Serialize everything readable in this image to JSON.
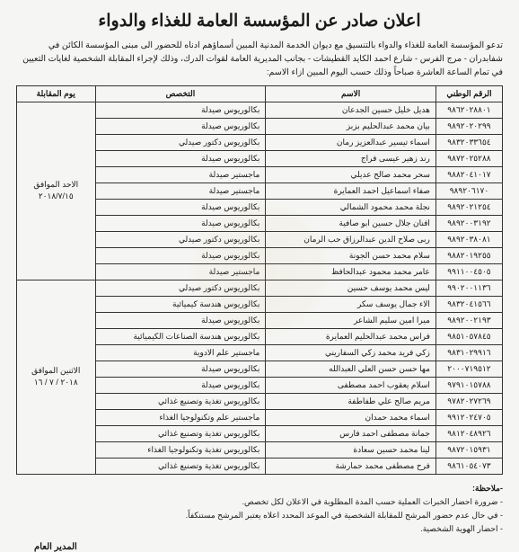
{
  "title": "اعلان صادر عن المؤسسة العامة للغذاء والدواء",
  "intro": "تدعو المؤسسة العامة للغذاء والدواء بالتنسيق مع ديوان الخدمة المدنية المبين أسماؤهم ادناه للحضور الى مبنى المؤسسة الكائن في شفابدران - مرج الفرس - شارع احمد الكايد القطيشات - بجانب المديرية العامة لقوات الدرك، وذلك لإجراء المقابلة الشخصية لغايات التعيين في تمام الساعة العاشرة صباحاً وذلك حسب اليوم المبين ازاء الاسم:",
  "headers": {
    "national_id": "الرقم الوطني",
    "name": "الاسم",
    "specialization": "التخصص",
    "interview_day": "يوم المقابلة"
  },
  "groups": [
    {
      "date_lines": [
        "الاحد الموافق",
        "٢٠١٨/٧/١٥"
      ],
      "rows": [
        {
          "id": "٩٨٦٢٠٢٨٨٠١",
          "name": "هديل خليل حسين الجدعان",
          "spec": "بكالوريوس صيدلة"
        },
        {
          "id": "٩٨٩٢٠٢٠٢٩٩",
          "name": "بيان محمد عبدالحليم بزبز",
          "spec": "بكالوريوس صيدلة"
        },
        {
          "id": "٩٨٣٢٠٣٣٦٥٤",
          "name": "اسماء تيسير عبدالعزيز رمان",
          "spec": "بكالوريوس دكتور صيدلي"
        },
        {
          "id": "٩٨٧٢٠٢٥٢٨٨",
          "name": "رند زهير عيسى فراج",
          "spec": "بكالوريوس صيدلة"
        },
        {
          "id": "٩٨٨٢٠٤١٠١٧",
          "name": "سحر محمد صالح عديلي",
          "spec": "ماجستير صيدلة"
        },
        {
          "id": "٩٨٩٢٠٦١٧٠",
          "name": "صفاء اسماعيل احمد العمايرة",
          "spec": "ماجستير صيدلة"
        },
        {
          "id": "٩٨٩٢٠٢١٢٥٤",
          "name": "نجلة محمد محمود الشمالي",
          "spec": "بكالوريوس صيدلة"
        },
        {
          "id": "٩٨٩٢٠٠٣١٩٢",
          "name": "افنان جلال حسين ابو صافية",
          "spec": "بكالوريوس صيدلة"
        },
        {
          "id": "٩٨٩٢٠٣٨٠٨١",
          "name": "ربى صلاح الدين عبدالرزاق حب الرمان",
          "spec": "بكالوريوس دكتور صيدلي"
        },
        {
          "id": "٩٨٨٢٠١٩٢٥٥",
          "name": "سلام محمد حسن الجونة",
          "spec": "بكالوريوس صيدلة"
        },
        {
          "id": "٩٩١١٠٠٤٥٠٥",
          "name": "عامر محمد محمود عبدالحافظ",
          "spec": "ماجستير صيدلة"
        }
      ]
    },
    {
      "date_lines": [
        "الاثنين الموافق",
        "٢٠١٨ / ٧ / ١٦"
      ],
      "rows": [
        {
          "id": "٩٩٠٢٠٠١١٣٦",
          "name": "ليس محمد يوسف حسين",
          "spec": "بكالوريوس دكتور صيدلي"
        },
        {
          "id": "٩٨٣٢٠٤١٥٦٦",
          "name": "الاء جمال يوسف سكر",
          "spec": "بكالوريوس هندسة كيميائية"
        },
        {
          "id": "٩٨٩٢٠٠٢١٩٣",
          "name": "ميرا امين سليم الشاعر",
          "spec": "بكالوريوس صيدلة"
        },
        {
          "id": "٩٨٥١٠٥٧٨٤٥",
          "name": "فراس محمد عبدالحليم العمايرة",
          "spec": "بكالوريوس هندسة الصناعات الكيميائية"
        },
        {
          "id": "٩٨٣١٠٢٩٩١٦",
          "name": "زكي فريد محمد زكي السفاريني",
          "spec": "ماجستير علم الادوية"
        },
        {
          "id": "٢٠٠٠٧١٩٥١٢",
          "name": "مها حسن حسن العلي العبدالله",
          "spec": "بكالوريوس صيدلة"
        },
        {
          "id": "٩٧٩١٠١٥٧٨٨",
          "name": "اسلام يعقوب احمد مصطفى",
          "spec": "بكالوريوس صيدلة"
        },
        {
          "id": "٩٧٨٢٠٢٧٢٦٩",
          "name": "مريم صالح علي طفاطفة",
          "spec": "بكالوريوس تغذية وتصنيع غذائي"
        },
        {
          "id": "٩٩١٢٠٢٤٧٠٥",
          "name": "اسماء محمد حمدان",
          "spec": "ماجستير علم وتكنولوجيا الغذاء"
        },
        {
          "id": "٩٨١٢٠٤٨٩٢٦",
          "name": "جمانة مصطفى احمد فارس",
          "spec": "بكالوريوس تغذية وتصنيع غذائي"
        },
        {
          "id": "٩٨٧٢٠١٥٩٣١",
          "name": "لينا محمد حسين سعادة",
          "spec": "بكالوريوس تغذية وتكنولوجيا الغذاء"
        },
        {
          "id": "٩٨٦١٠٥٤٠٧٣",
          "name": "فرح مصطفى محمد حمارشة",
          "spec": "بكالوريوس تغذية وتصنيع غذائي"
        }
      ]
    }
  ],
  "notes": {
    "label": "-ملاحظة:",
    "items": [
      "- ضرورة احضار الخبرات العملية حسب المدة المطلوبة في الاعلان لكل تخصص.",
      "- في حال عدم حضور المرشح للمقابلة الشخصية في الموعد المحدد اعلاه يعتبر المرشح مستنكفاً.",
      "- احضار الهوية الشخصية."
    ]
  },
  "signature": "المدير العام"
}
